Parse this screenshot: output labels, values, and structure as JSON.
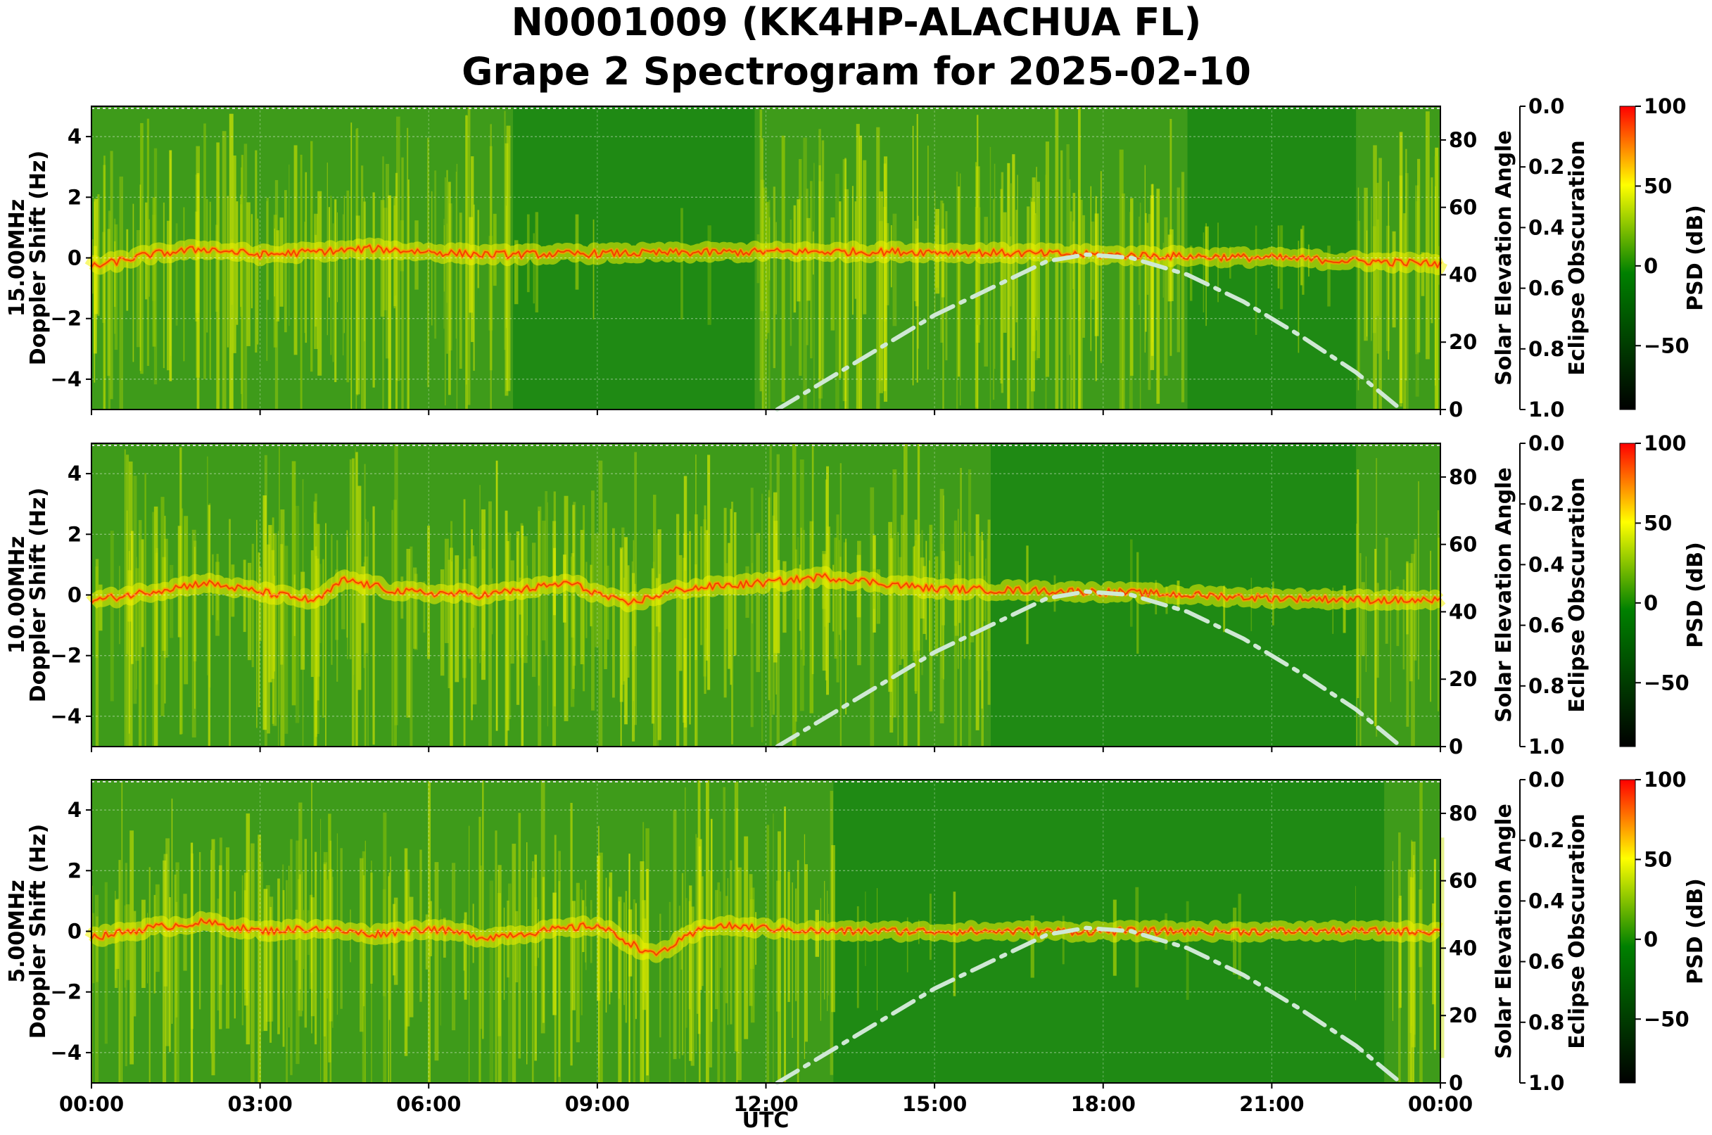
{
  "title_line1": "N0001009 (KK4HP-ALACHUA FL)",
  "title_line2": "Grape 2 Spectrogram for 2025-02-10",
  "colors": {
    "low": "#000000",
    "mid": "#008000",
    "high_mid": "#ffff00",
    "high": "#ff0000",
    "sun_curve": "#cfe8d4"
  },
  "chart_data": [
    {
      "type": "heatmap",
      "panel": "15.00MHz",
      "ylabel_line1": "15.00MHz",
      "ylabel_line2": "Doppler Shift (Hz)",
      "ylim": [
        -5,
        5
      ],
      "yticks": [
        "−4",
        "−2",
        "0",
        "2",
        "4"
      ],
      "ytick_values": [
        -4,
        -2,
        0,
        2,
        4
      ],
      "y2label": "Solar Elevation Angle",
      "y2lim": [
        0,
        90
      ],
      "y2ticks": [
        "0",
        "20",
        "40",
        "60",
        "80"
      ],
      "y3label": "Eclipse Obscuration",
      "y3lim": [
        1.0,
        0.0
      ],
      "y3ticks": [
        "0.0",
        "0.2",
        "0.4",
        "0.6",
        "0.8",
        "1.0"
      ],
      "cbar_label": "PSD (dB)",
      "cbar_ticks": [
        "100",
        "50",
        "0",
        "−50"
      ],
      "cbar_range": [
        -90,
        100
      ],
      "xlim_hours": [
        0,
        24
      ],
      "carrier_doppler_hz": [
        [
          0,
          -0.3
        ],
        [
          1,
          0.1
        ],
        [
          2,
          0.3
        ],
        [
          3,
          0.1
        ],
        [
          4,
          0.2
        ],
        [
          5,
          0.3
        ],
        [
          6,
          0.2
        ],
        [
          7,
          0.1
        ],
        [
          12,
          0.2
        ],
        [
          15,
          0.2
        ],
        [
          18,
          0.1
        ],
        [
          21,
          0.0
        ],
        [
          24,
          -0.2
        ]
      ],
      "active_hours": [
        [
          0,
          7.5
        ],
        [
          11.8,
          19.5
        ],
        [
          22.5,
          24
        ]
      ],
      "solar_elevation_deg": [
        [
          12.2,
          0
        ],
        [
          13,
          8
        ],
        [
          14,
          18
        ],
        [
          15,
          28
        ],
        [
          16,
          36
        ],
        [
          17,
          44
        ],
        [
          17.7,
          46
        ],
        [
          18.5,
          45
        ],
        [
          19.5,
          40
        ],
        [
          20.5,
          32
        ],
        [
          21.5,
          22
        ],
        [
          22.5,
          11
        ],
        [
          23.3,
          0
        ]
      ]
    },
    {
      "type": "heatmap",
      "panel": "10.00MHz",
      "ylabel_line1": "10.00MHz",
      "ylabel_line2": "Doppler Shift (Hz)",
      "ylim": [
        -5,
        5
      ],
      "yticks": [
        "−4",
        "−2",
        "0",
        "2",
        "4"
      ],
      "ytick_values": [
        -4,
        -2,
        0,
        2,
        4
      ],
      "y2label": "Solar Elevation Angle",
      "y2lim": [
        0,
        90
      ],
      "y2ticks": [
        "0",
        "20",
        "40",
        "60",
        "80"
      ],
      "y3label": "Eclipse Obscuration",
      "y3lim": [
        1.0,
        0.0
      ],
      "y3ticks": [
        "0.0",
        "0.2",
        "0.4",
        "0.6",
        "0.8",
        "1.0"
      ],
      "cbar_label": "PSD (dB)",
      "cbar_ticks": [
        "100",
        "50",
        "0",
        "−50"
      ],
      "cbar_range": [
        -90,
        100
      ],
      "xlim_hours": [
        0,
        24
      ],
      "carrier_doppler_hz": [
        [
          0,
          -0.2
        ],
        [
          1,
          0.1
        ],
        [
          2,
          0.4
        ],
        [
          3,
          0.1
        ],
        [
          4,
          -0.2
        ],
        [
          4.5,
          0.5
        ],
        [
          5.5,
          0.1
        ],
        [
          7,
          0.0
        ],
        [
          8.5,
          0.4
        ],
        [
          9.5,
          -0.3
        ],
        [
          10.5,
          0.2
        ],
        [
          12,
          0.4
        ],
        [
          13,
          0.6
        ],
        [
          15,
          0.2
        ],
        [
          18,
          0.1
        ],
        [
          21,
          -0.1
        ],
        [
          24,
          -0.2
        ]
      ],
      "active_hours": [
        [
          0,
          16
        ],
        [
          22.5,
          24
        ]
      ],
      "solar_elevation_deg": [
        [
          12.2,
          0
        ],
        [
          13,
          8
        ],
        [
          14,
          18
        ],
        [
          15,
          28
        ],
        [
          16,
          36
        ],
        [
          17,
          44
        ],
        [
          17.7,
          46
        ],
        [
          18.5,
          45
        ],
        [
          19.5,
          40
        ],
        [
          20.5,
          32
        ],
        [
          21.5,
          22
        ],
        [
          22.5,
          11
        ],
        [
          23.3,
          0
        ]
      ]
    },
    {
      "type": "heatmap",
      "panel": "5.00MHz",
      "ylabel_line1": "5.00MHz",
      "ylabel_line2": "Doppler Shift (Hz)",
      "ylim": [
        -5,
        5
      ],
      "yticks": [
        "−4",
        "−2",
        "0",
        "2",
        "4"
      ],
      "ytick_values": [
        -4,
        -2,
        0,
        2,
        4
      ],
      "y2label": "Solar Elevation Angle",
      "y2lim": [
        0,
        90
      ],
      "y2ticks": [
        "0",
        "20",
        "40",
        "60",
        "80"
      ],
      "y3label": "Eclipse Obscuration",
      "y3lim": [
        1.0,
        0.0
      ],
      "y3ticks": [
        "0.0",
        "0.2",
        "0.4",
        "0.6",
        "0.8",
        "1.0"
      ],
      "cbar_label": "PSD (dB)",
      "cbar_ticks": [
        "100",
        "50",
        "0",
        "−50"
      ],
      "cbar_range": [
        -90,
        100
      ],
      "xlim_hours": [
        0,
        24
      ],
      "xlabel": "UTC",
      "xticks": [
        "00:00",
        "03:00",
        "06:00",
        "09:00",
        "12:00",
        "15:00",
        "18:00",
        "21:00",
        "00:00"
      ],
      "carrier_doppler_hz": [
        [
          0,
          -0.2
        ],
        [
          1,
          0.1
        ],
        [
          2,
          0.3
        ],
        [
          3,
          0.0
        ],
        [
          4,
          0.1
        ],
        [
          5,
          -0.1
        ],
        [
          6,
          0.1
        ],
        [
          7,
          -0.2
        ],
        [
          8,
          0.0
        ],
        [
          9,
          0.2
        ],
        [
          10,
          -0.8
        ],
        [
          11,
          0.2
        ],
        [
          12,
          0.1
        ],
        [
          13,
          0.0
        ],
        [
          18,
          0.0
        ],
        [
          24,
          0.0
        ]
      ],
      "active_hours": [
        [
          0,
          13.2
        ],
        [
          23,
          24
        ]
      ],
      "solar_elevation_deg": [
        [
          12.2,
          0
        ],
        [
          13,
          8
        ],
        [
          14,
          18
        ],
        [
          15,
          28
        ],
        [
          16,
          36
        ],
        [
          17,
          44
        ],
        [
          17.7,
          46
        ],
        [
          18.5,
          45
        ],
        [
          19.5,
          40
        ],
        [
          20.5,
          32
        ],
        [
          21.5,
          22
        ],
        [
          22.5,
          11
        ],
        [
          23.3,
          0
        ]
      ]
    }
  ]
}
